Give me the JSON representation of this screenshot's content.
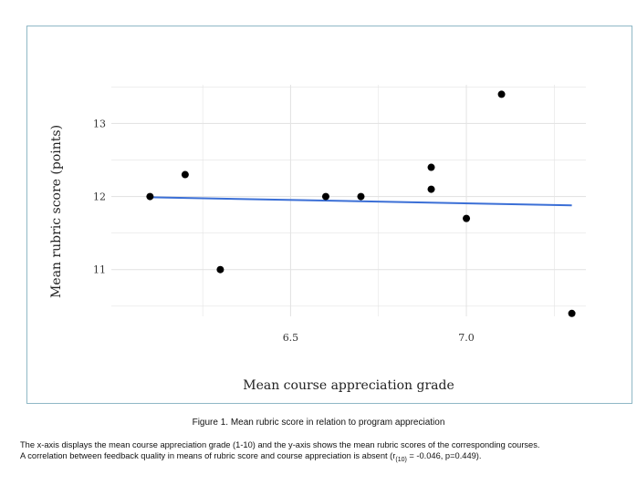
{
  "chart_data": {
    "type": "scatter",
    "xlabel": "Mean course appreciation grade",
    "ylabel": "Mean rubric score (points)",
    "xlim": [
      5.99,
      7.34
    ],
    "ylim": [
      10.36,
      13.53
    ],
    "xticks": [
      6.5,
      7.0
    ],
    "xtick_labels": [
      "6.5",
      "7.0"
    ],
    "xminor": [
      6.25,
      6.75,
      7.25
    ],
    "yticks": [
      11,
      12,
      13
    ],
    "ytick_labels": [
      "11",
      "12",
      "13"
    ],
    "yminor": [
      10.5,
      11.5,
      12.5,
      13.5
    ],
    "grid": true,
    "points": [
      {
        "x": 6.1,
        "y": 12.0
      },
      {
        "x": 6.2,
        "y": 12.3
      },
      {
        "x": 6.3,
        "y": 11.0
      },
      {
        "x": 6.6,
        "y": 12.0
      },
      {
        "x": 6.7,
        "y": 12.0
      },
      {
        "x": 6.9,
        "y": 12.4
      },
      {
        "x": 6.9,
        "y": 12.1
      },
      {
        "x": 7.0,
        "y": 11.7
      },
      {
        "x": 7.1,
        "y": 13.4
      },
      {
        "x": 7.3,
        "y": 10.4
      }
    ],
    "trendline": {
      "x": [
        6.1,
        7.3
      ],
      "y": [
        11.99,
        11.88
      ]
    },
    "colors": {
      "point": "#000000",
      "trendline": "#3b6fd6",
      "grid": "#e4e4e4",
      "frame": "#8fb8c6"
    }
  },
  "caption": {
    "title": "Figure 1. Mean rubric score in relation to program appreciation",
    "line1": "The x-axis displays the mean course appreciation grade (1-10) and the y-axis shows the mean rubric scores of the corresponding courses.",
    "line2_pre": "A correlation between feedback quality in means of rubric score and course appreciation is absent (r",
    "line2_sub": "(10)",
    "line2_post": " = -0.046, p=0.449)."
  }
}
